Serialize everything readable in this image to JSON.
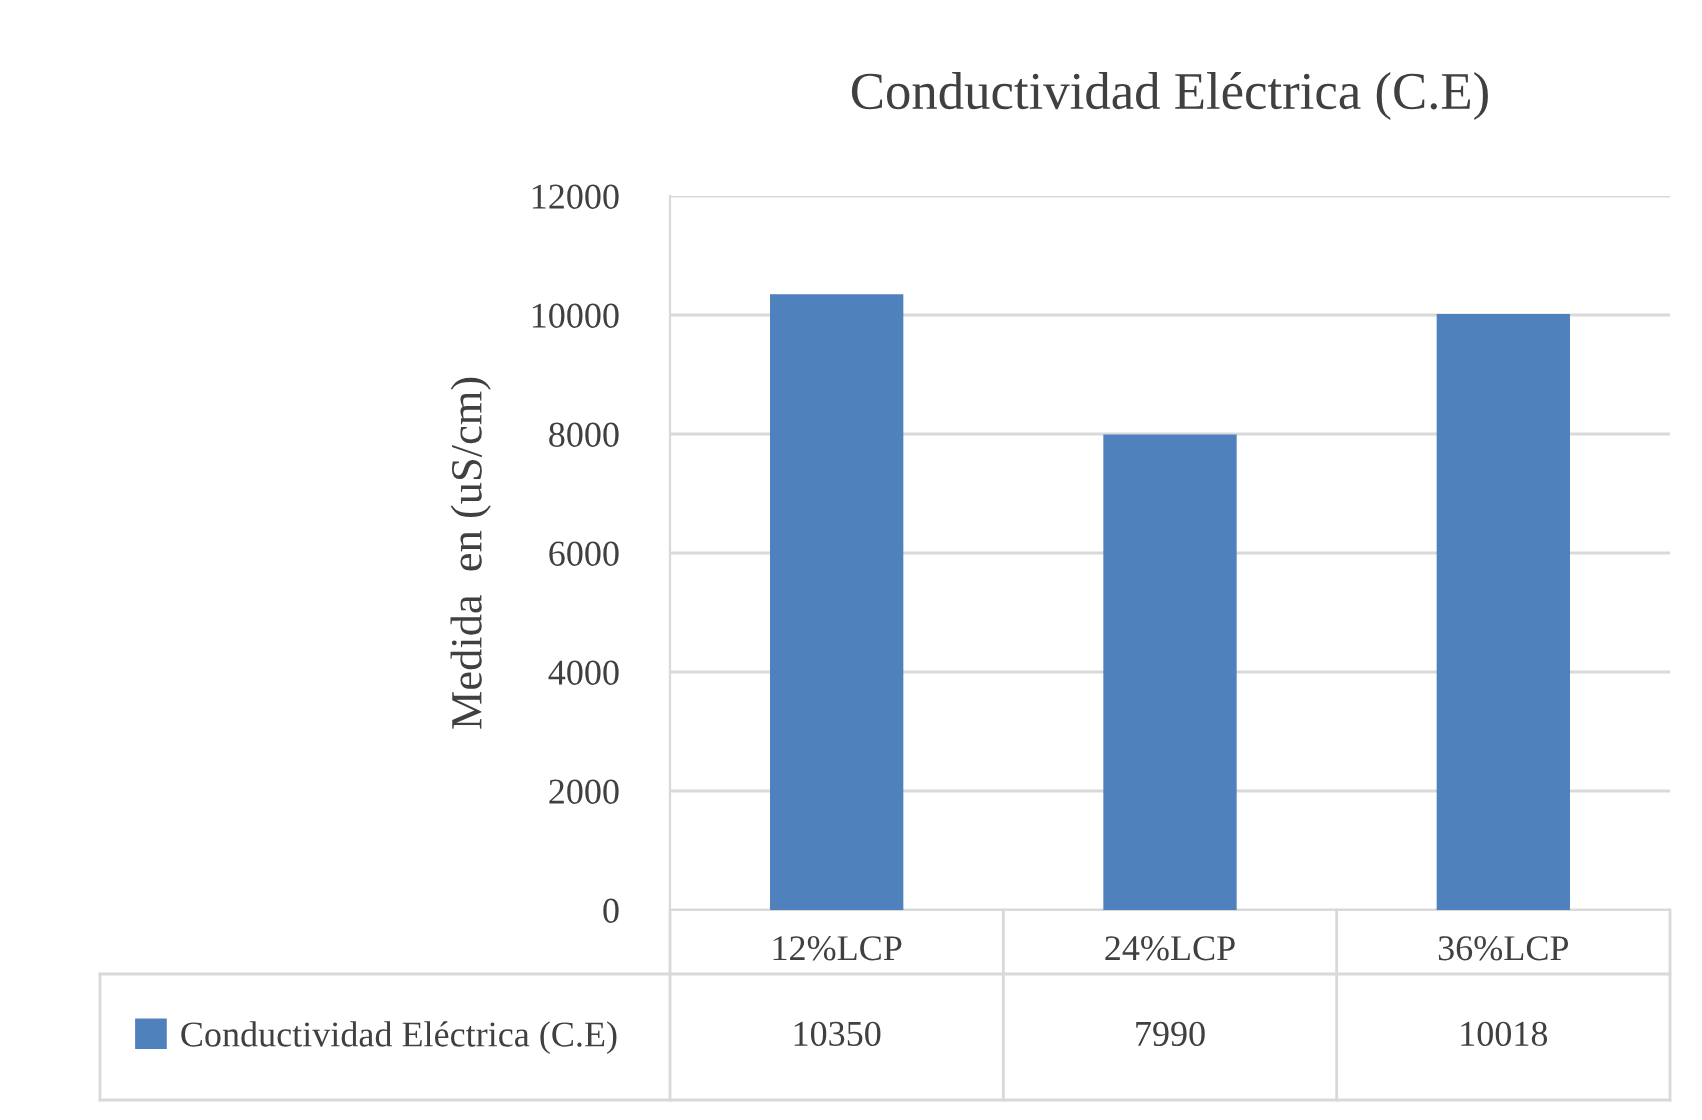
{
  "chart_data": {
    "type": "bar",
    "title": "Conductividad Eléctrica (C.E)",
    "ylabel": "Medida  en (uS/cm)",
    "categories": [
      "12%LCP",
      "24%LCP",
      "36%LCP"
    ],
    "series": [
      {
        "name": "Conductividad Eléctrica (C.E)",
        "color": "#4f81bd",
        "values": [
          10350,
          7990,
          10018
        ]
      }
    ],
    "ylim": [
      0,
      12000
    ],
    "yticks": [
      0,
      2000,
      4000,
      6000,
      8000,
      10000,
      12000
    ],
    "grid": "y",
    "legend": "bottom",
    "data_labels": true
  }
}
